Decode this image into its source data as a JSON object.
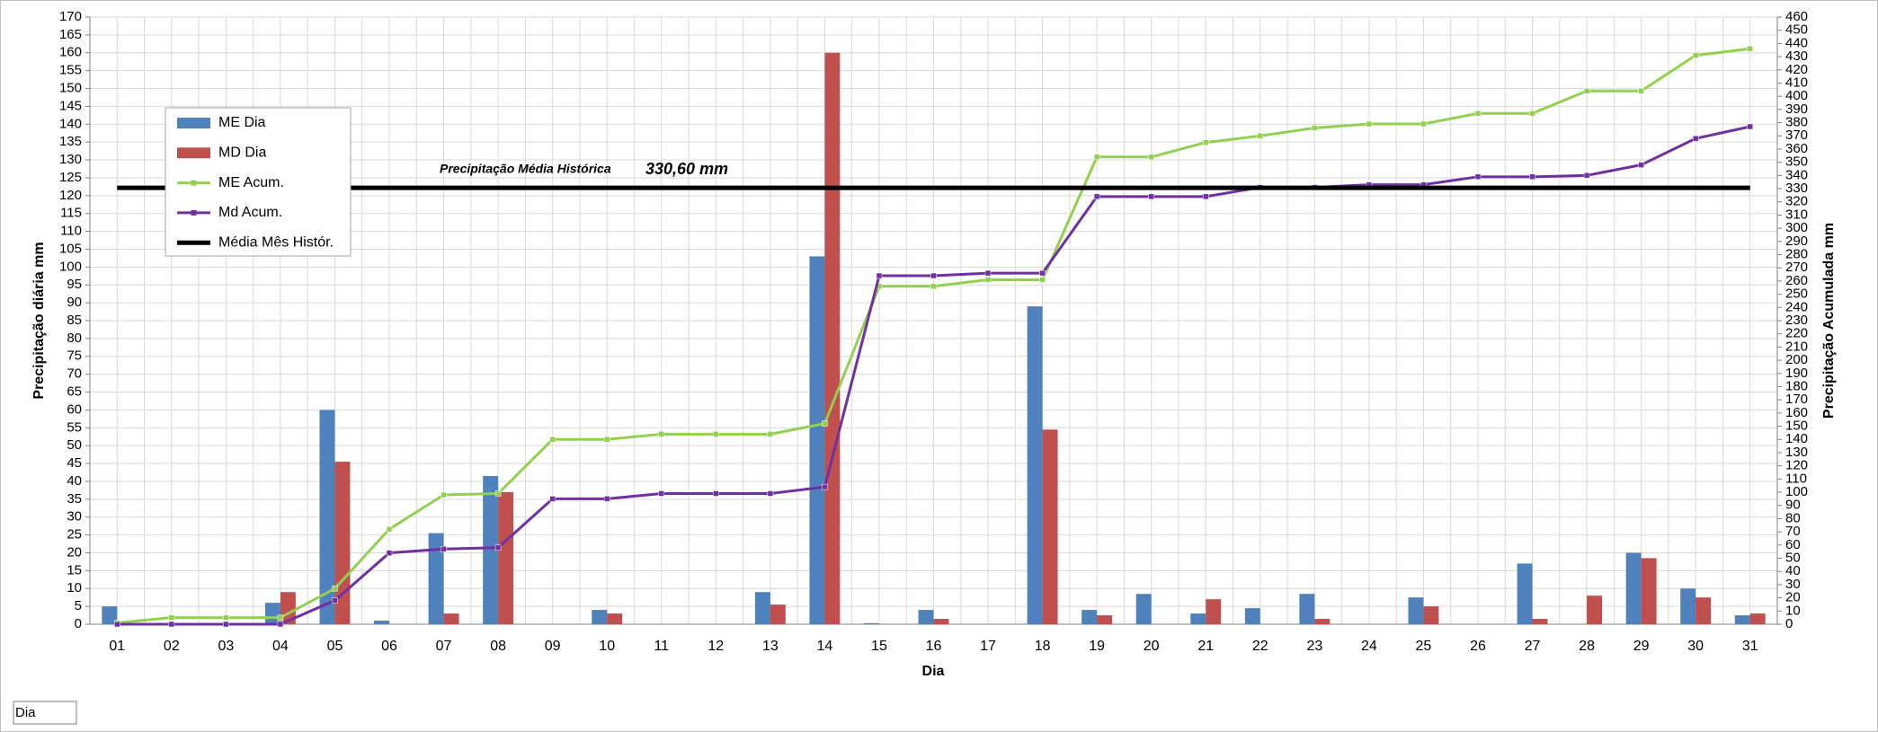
{
  "chart_data": {
    "type": "bar",
    "x_label": "Dia",
    "y_label": "Precipitação diária mm",
    "y2_label": "Precipitação Acumulada mm",
    "field_button": "Dia",
    "categories": [
      "01",
      "02",
      "03",
      "04",
      "05",
      "06",
      "07",
      "08",
      "09",
      "10",
      "11",
      "12",
      "13",
      "14",
      "15",
      "16",
      "17",
      "18",
      "19",
      "20",
      "21",
      "22",
      "23",
      "24",
      "25",
      "26",
      "27",
      "28",
      "29",
      "30",
      "31"
    ],
    "series": [
      {
        "name": "ME Dia",
        "type": "bar",
        "color": "#4f81bd",
        "values": [
          5,
          0,
          0,
          6,
          60,
          1,
          25.5,
          41.5,
          0,
          4,
          0,
          0,
          9,
          103,
          0.3,
          4,
          0,
          89,
          4,
          8.5,
          3,
          4.5,
          8.5,
          0,
          7.5,
          0,
          17,
          0,
          20,
          10,
          2.5
        ]
      },
      {
        "name": "MD Dia",
        "type": "bar",
        "color": "#c0504d",
        "values": [
          0,
          0,
          0,
          9,
          45.5,
          0,
          3,
          37,
          0,
          3,
          0,
          0,
          5.5,
          160,
          0,
          1.5,
          0,
          54.5,
          2.5,
          0,
          7,
          0,
          1.5,
          0,
          5,
          0,
          1.5,
          8,
          18.5,
          7.5,
          3
        ]
      },
      {
        "name": "ME Acum.",
        "type": "line",
        "axis": "y2",
        "color": "#92d050",
        "values": [
          1,
          5,
          5,
          5,
          27,
          72,
          98,
          99,
          140,
          140,
          144,
          144,
          144,
          152,
          256,
          256,
          261,
          261,
          354,
          354,
          365,
          370,
          376,
          379,
          379,
          387,
          387,
          404,
          404,
          431,
          436
        ]
      },
      {
        "name": "Md Acum.",
        "type": "line",
        "axis": "y2",
        "color": "#7030a0",
        "values": [
          0,
          0,
          0,
          0,
          18,
          54,
          57,
          58,
          95,
          95,
          99,
          99,
          99,
          104,
          264,
          264,
          266,
          266,
          324,
          324,
          324,
          331,
          331,
          333,
          333,
          339,
          339,
          340,
          348,
          368,
          377
        ]
      }
    ],
    "reference_line": {
      "name": "Média Mês Histór.",
      "color": "#000000",
      "axis": "y2",
      "value": 330.6,
      "label": "Precipitação Média Histórica",
      "value_label": "330,60 mm"
    },
    "ylim": [
      0,
      170
    ],
    "yticks": [
      0,
      5,
      10,
      15,
      20,
      25,
      30,
      35,
      40,
      45,
      50,
      55,
      60,
      65,
      70,
      75,
      80,
      85,
      90,
      95,
      100,
      105,
      110,
      115,
      120,
      125,
      130,
      135,
      140,
      145,
      150,
      155,
      160,
      165,
      170
    ],
    "y2lim": [
      0,
      460
    ],
    "y2ticks": [
      0,
      10,
      20,
      30,
      40,
      50,
      60,
      70,
      80,
      90,
      100,
      110,
      120,
      130,
      140,
      150,
      160,
      170,
      180,
      190,
      200,
      210,
      220,
      230,
      240,
      250,
      260,
      270,
      280,
      290,
      300,
      310,
      320,
      330,
      340,
      350,
      360,
      370,
      380,
      390,
      400,
      410,
      420,
      430,
      440,
      450,
      460
    ],
    "grid": true
  }
}
